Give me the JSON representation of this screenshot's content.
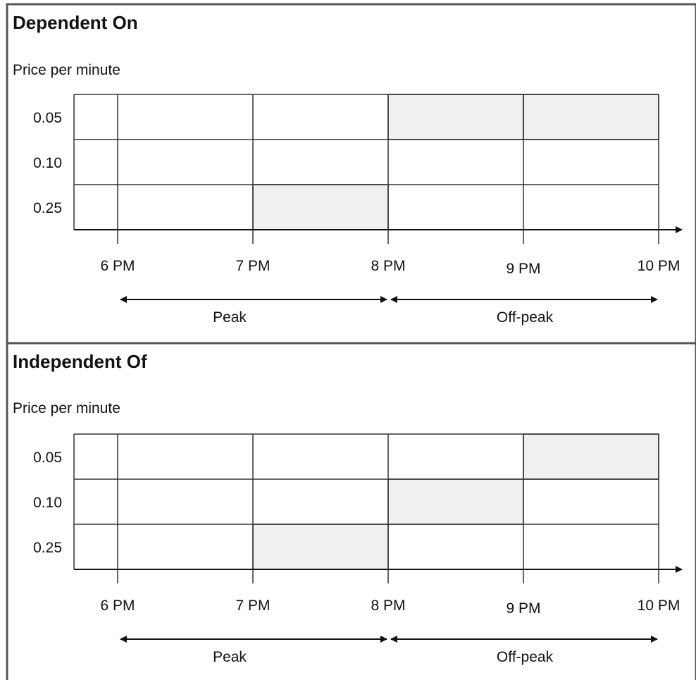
{
  "colors": {
    "frame": "#555555",
    "grid": "#333333",
    "highlight": "#f0f0f0",
    "text": "#111111"
  },
  "time_axis": [
    "6 PM",
    "7 PM",
    "8 PM",
    "9 PM",
    "10 PM"
  ],
  "price_levels": [
    "0.05",
    "0.10",
    "0.25"
  ],
  "periods": [
    {
      "label": "Peak",
      "from": "6 PM",
      "to": "8 PM"
    },
    {
      "label": "Off-peak",
      "from": "8 PM",
      "to": "10 PM"
    }
  ],
  "panels": [
    {
      "title": "Dependent On",
      "ylabel": "Price per minute",
      "highlights": [
        {
          "from": "7 PM",
          "to": "8 PM",
          "price": "0.25"
        },
        {
          "from": "8 PM",
          "to": "9 PM",
          "price": "0.05"
        },
        {
          "from": "9 PM",
          "to": "10 PM",
          "price": "0.05"
        }
      ]
    },
    {
      "title": "Independent Of",
      "ylabel": "Price per minute",
      "highlights": [
        {
          "from": "7 PM",
          "to": "8 PM",
          "price": "0.25"
        },
        {
          "from": "8 PM",
          "to": "9 PM",
          "price": "0.10"
        },
        {
          "from": "9 PM",
          "to": "10 PM",
          "price": "0.05"
        }
      ]
    }
  ]
}
